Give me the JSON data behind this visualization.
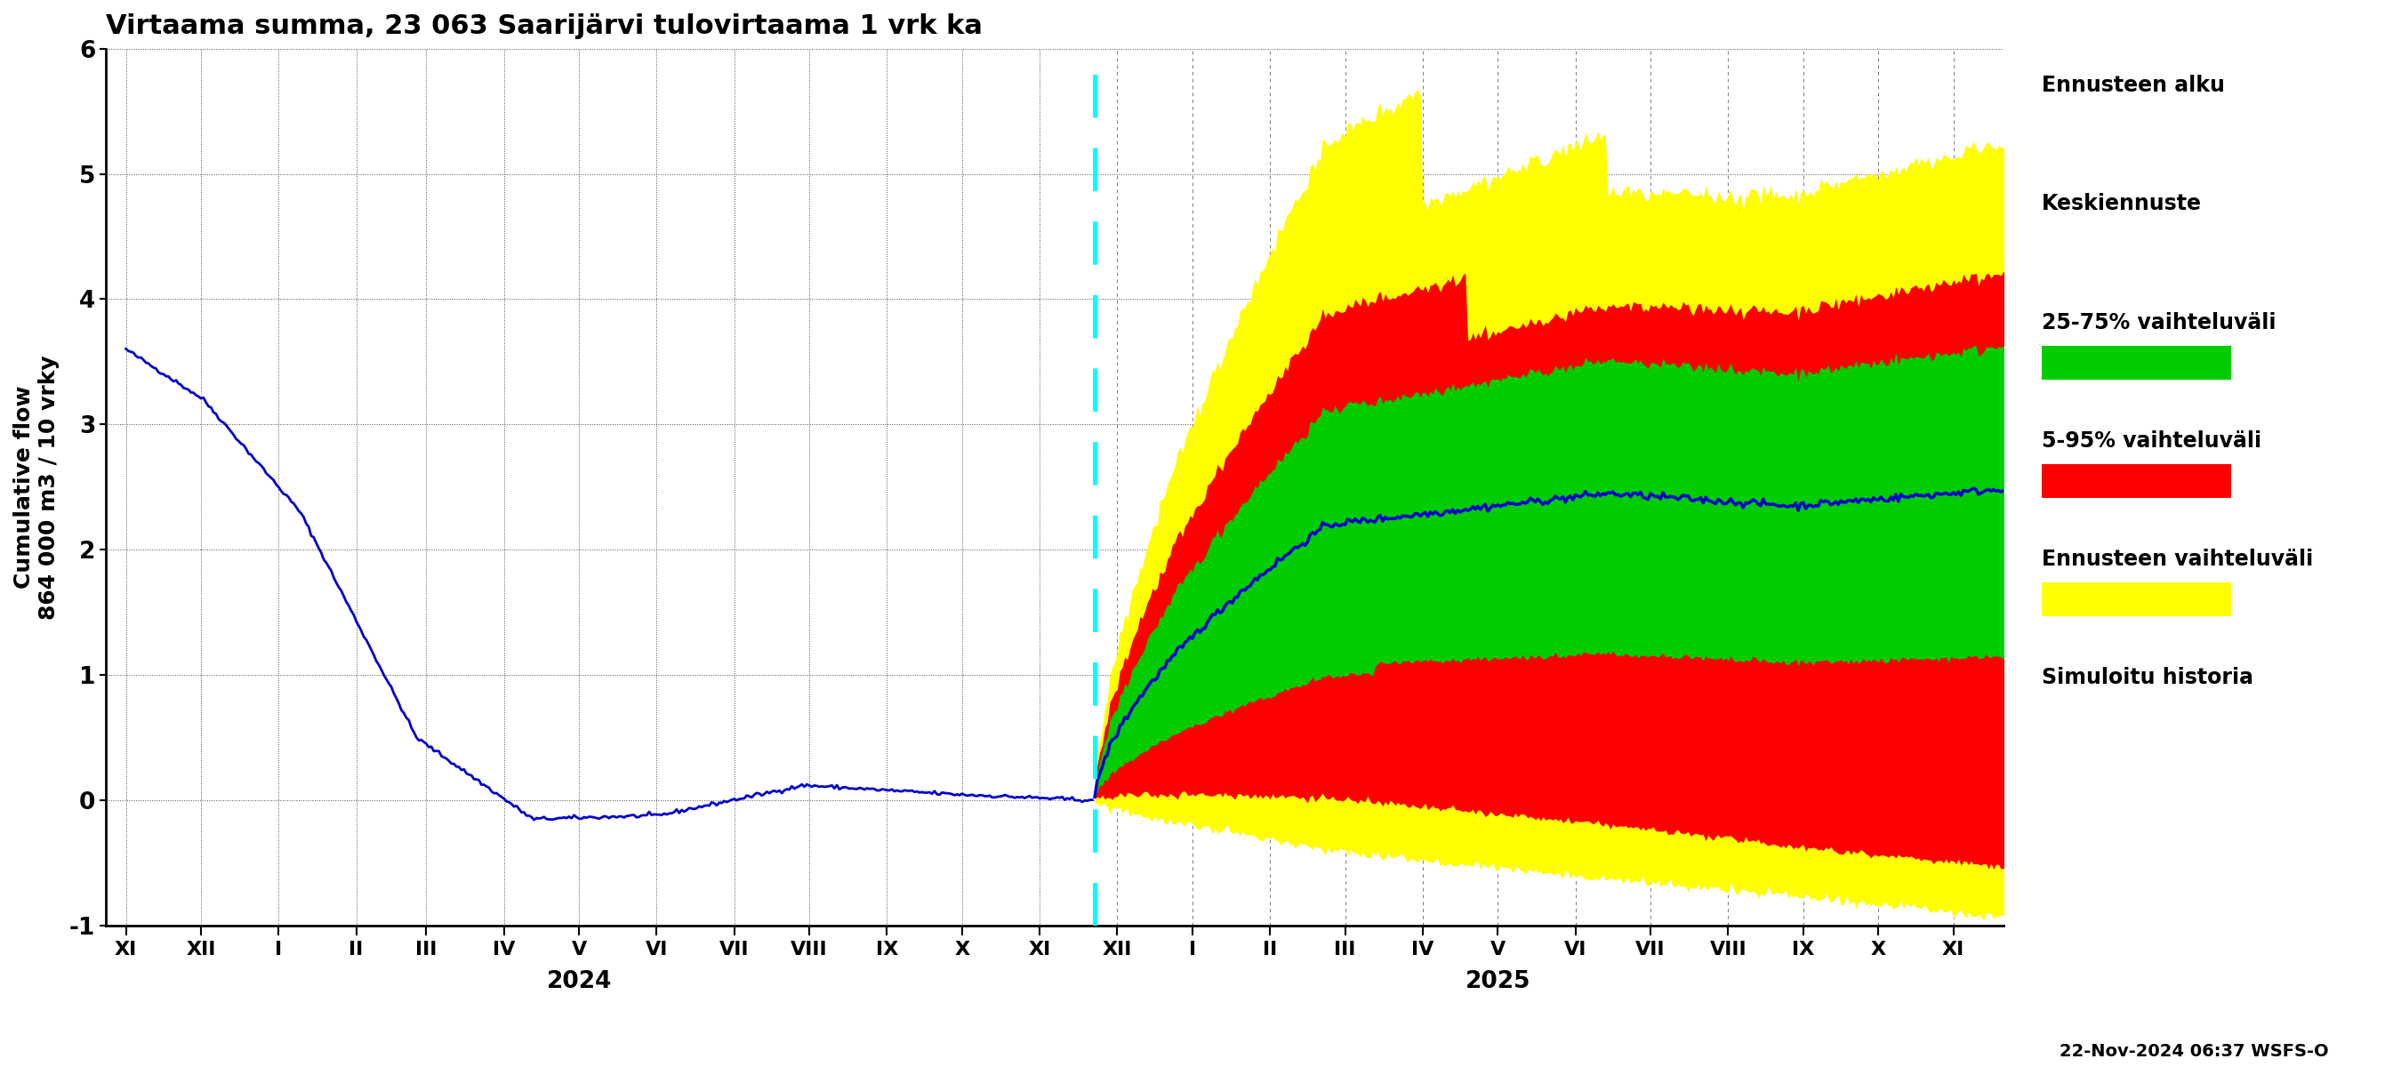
{
  "title": "Virtaama summa, 23 063 Saarijärvi tulovirtaama 1 vrk ka",
  "ylabel_top": "Cumulative flow",
  "ylabel_bottom": "864 000 m3 / 10 vrky",
  "ylim": [
    -1,
    6
  ],
  "yticks": [
    -1,
    0,
    1,
    2,
    3,
    4,
    5,
    6
  ],
  "colors": {
    "history_line": "#0000cc",
    "band_yellow": "#ffff00",
    "band_red": "#ff0000",
    "band_green": "#00cc00",
    "cyan_dashed": "#00ffff"
  },
  "legend_labels": [
    "Ennusteen alku",
    "Keskiennuste",
    "25-75% vaihteluväli",
    "5-95% vaihteluväli",
    "Ennusteen vaihteluväli",
    "Simuloitu historia"
  ],
  "bottom_text": "22-Nov-2024 06:37 WSFS-O",
  "month_names": [
    "XI",
    "XII",
    "I",
    "II",
    "III",
    "IV",
    "V",
    "VI",
    "VII",
    "VIII",
    "IX",
    "X",
    "XI",
    "XII",
    "I",
    "II",
    "III",
    "IV",
    "V",
    "VI",
    "VII",
    "VIII",
    "IX",
    "X",
    "XI"
  ],
  "month_days": [
    0,
    30,
    61,
    92,
    120,
    151,
    181,
    212,
    243,
    273,
    304,
    334,
    365,
    396,
    426,
    457,
    487,
    518,
    548,
    579,
    609,
    640,
    670,
    700,
    730
  ],
  "forecast_day": 387,
  "year_2024_day": 181,
  "year_2025_day": 548
}
